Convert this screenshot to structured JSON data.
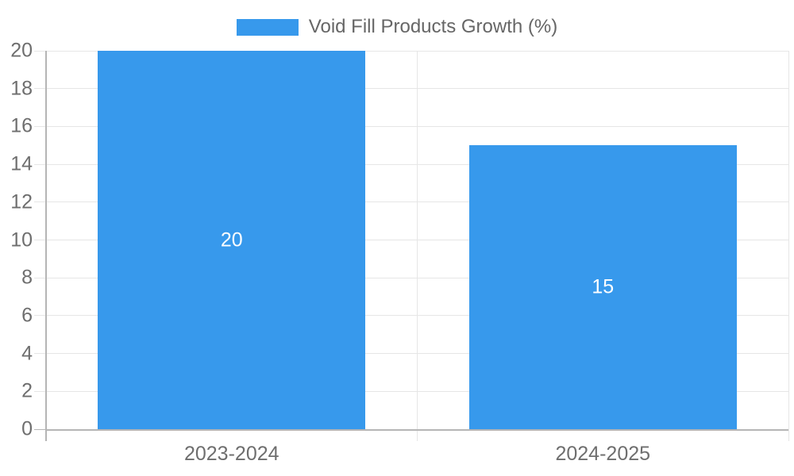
{
  "legend": {
    "label": "Void Fill Products Growth (%)"
  },
  "chart_data": {
    "type": "bar",
    "title": "Void Fill Products Growth (%)",
    "categories": [
      "2023-2024",
      "2024-2025"
    ],
    "series": [
      {
        "name": "Void Fill Products Growth (%)",
        "values": [
          20,
          15
        ]
      }
    ],
    "bar_value_labels": [
      "20",
      "15"
    ],
    "xlabel": "",
    "ylabel": "",
    "ylim": [
      0,
      20
    ],
    "ytick_step": 2,
    "yticks": [
      0,
      2,
      4,
      6,
      8,
      10,
      12,
      14,
      16,
      18,
      20
    ],
    "grid": true,
    "legend_position": "top",
    "colors": {
      "bar": "#3799ec",
      "gridline": "#e6e6e6",
      "axis": "#b5b5b5",
      "tick_label": "#6e6e6e",
      "legend_text": "#666666",
      "bar_label_text": "#ffffff",
      "background": "#ffffff"
    }
  }
}
